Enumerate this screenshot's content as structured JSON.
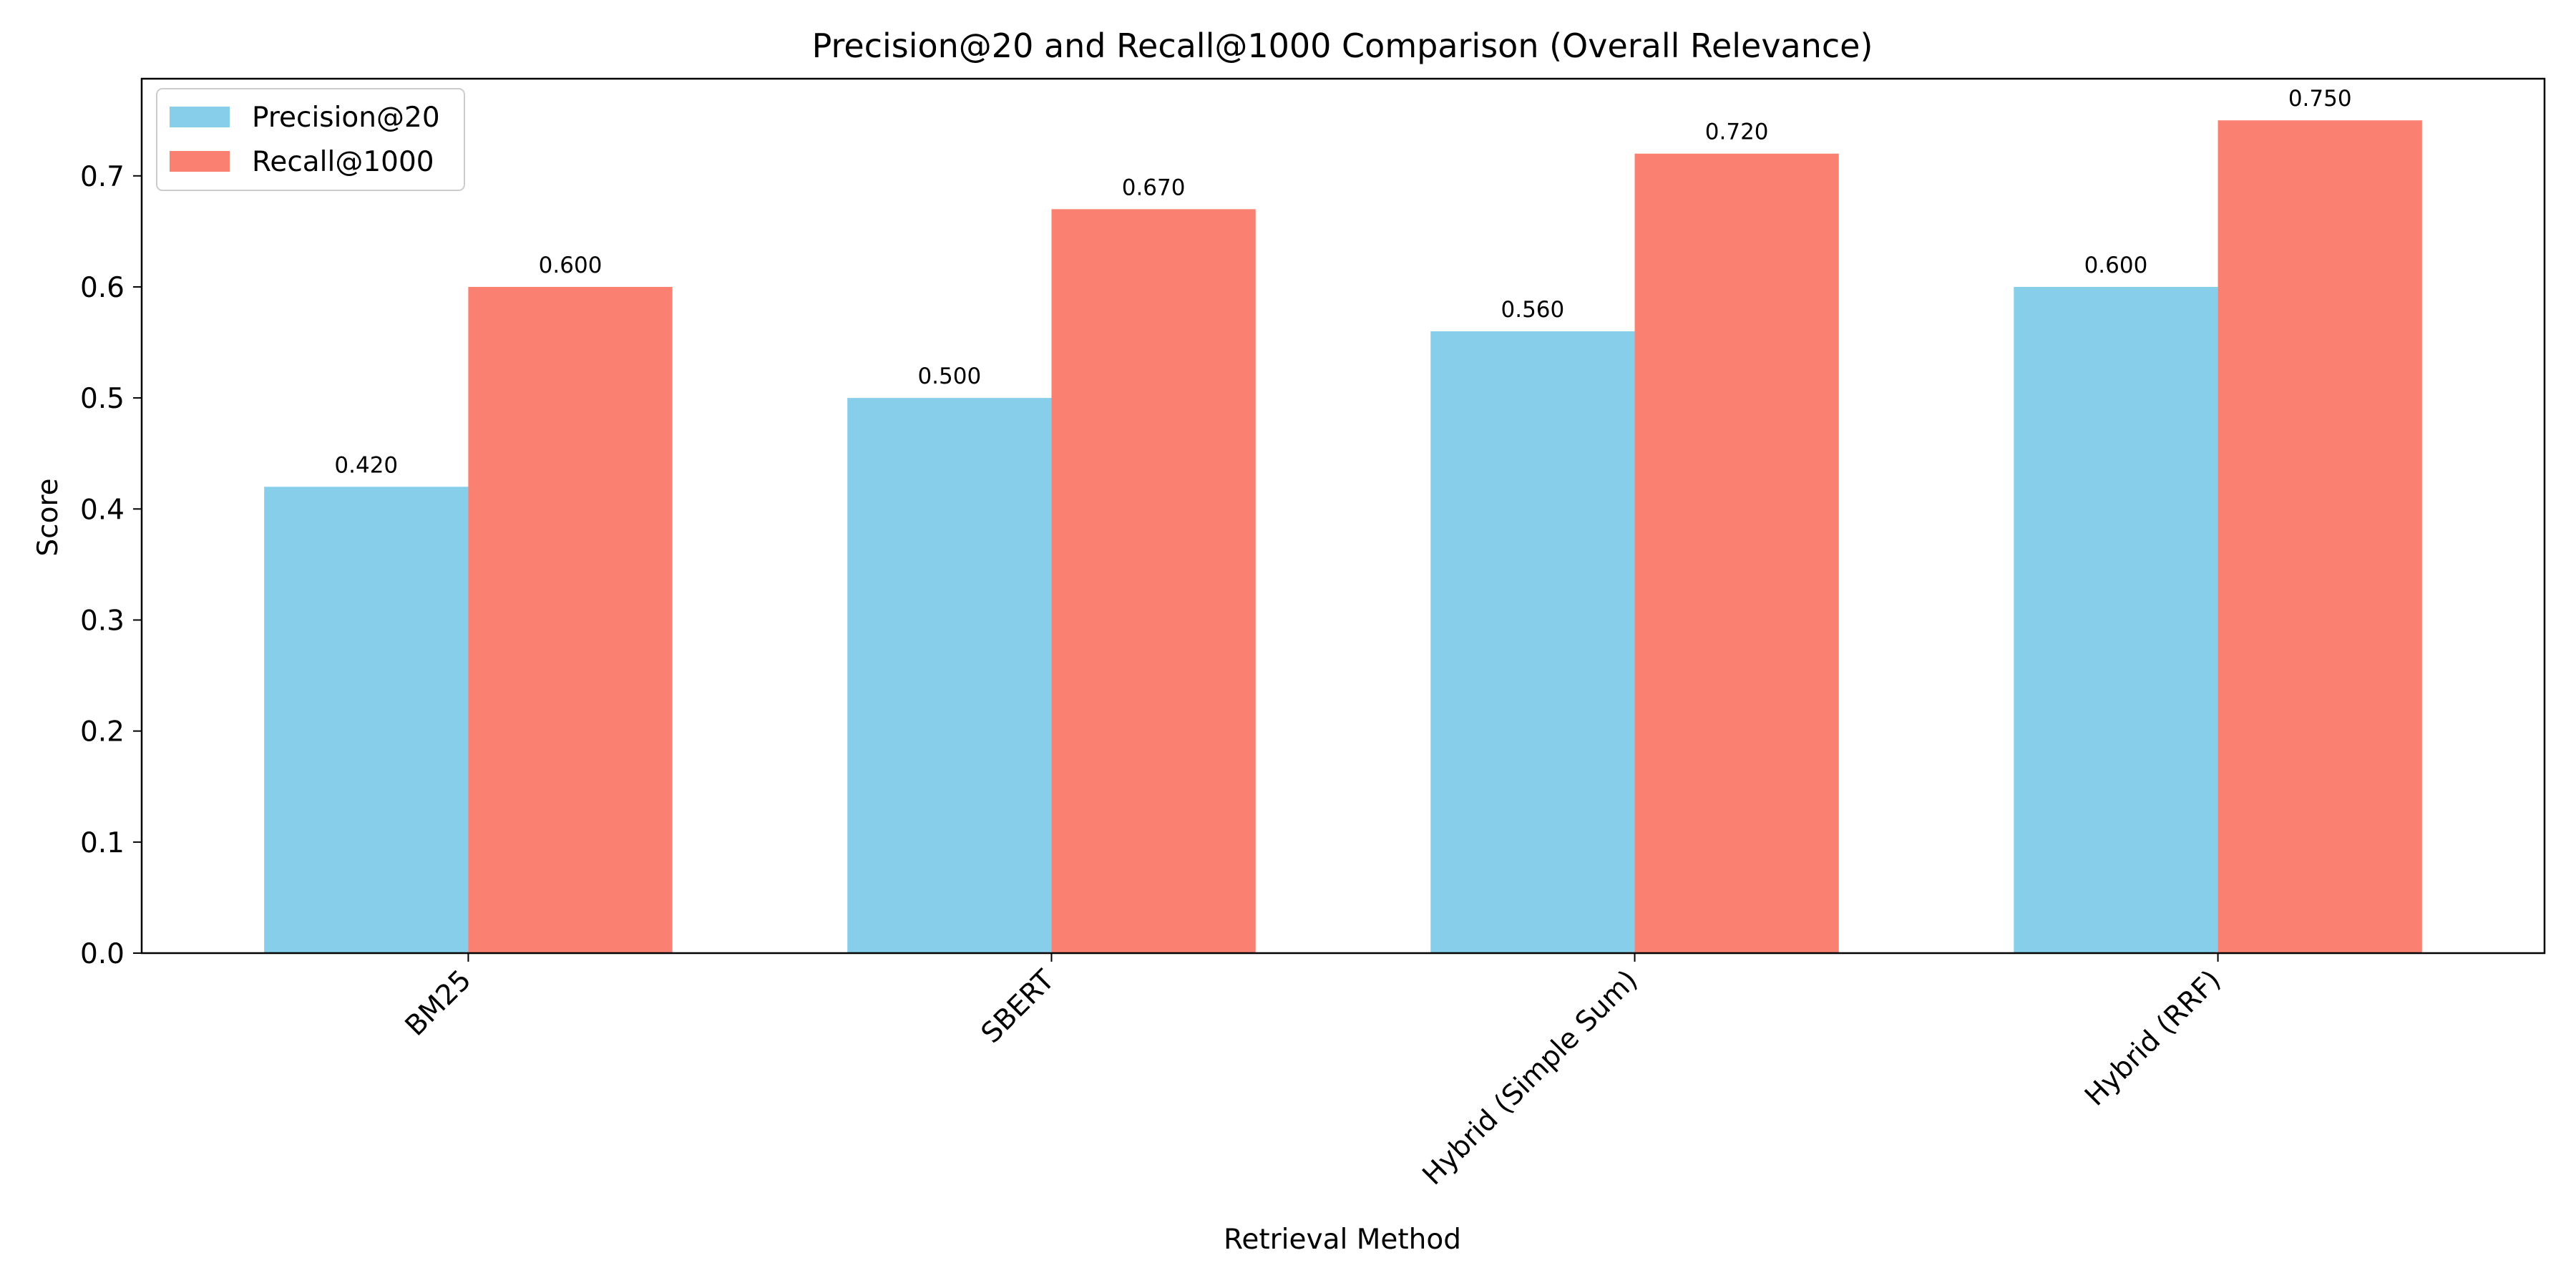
{
  "chart_data": {
    "type": "bar",
    "title": "Precision@20 and Recall@1000 Comparison (Overall Relevance)",
    "xlabel": "Retrieval Method",
    "ylabel": "Score",
    "categories": [
      "BM25",
      "SBERT",
      "Hybrid (Simple Sum)",
      "Hybrid (RRF)"
    ],
    "series": [
      {
        "name": "Precision@20",
        "color": "#87ceeb",
        "values": [
          0.42,
          0.5,
          0.56,
          0.6
        ],
        "labels": [
          "0.420",
          "0.500",
          "0.560",
          "0.600"
        ]
      },
      {
        "name": "Recall@1000",
        "color": "#fa8072",
        "values": [
          0.6,
          0.67,
          0.72,
          0.75
        ],
        "labels": [
          "0.600",
          "0.670",
          "0.720",
          "0.750"
        ]
      }
    ],
    "ylim": [
      0,
      0.7875
    ],
    "yticks": [
      0.0,
      0.1,
      0.2,
      0.3,
      0.4,
      0.5,
      0.6,
      0.7
    ],
    "ytick_labels": [
      "0.0",
      "0.1",
      "0.2",
      "0.3",
      "0.4",
      "0.5",
      "0.6",
      "0.7"
    ],
    "xtick_rotation": 45,
    "legend_position": "top-left",
    "grid": false
  }
}
